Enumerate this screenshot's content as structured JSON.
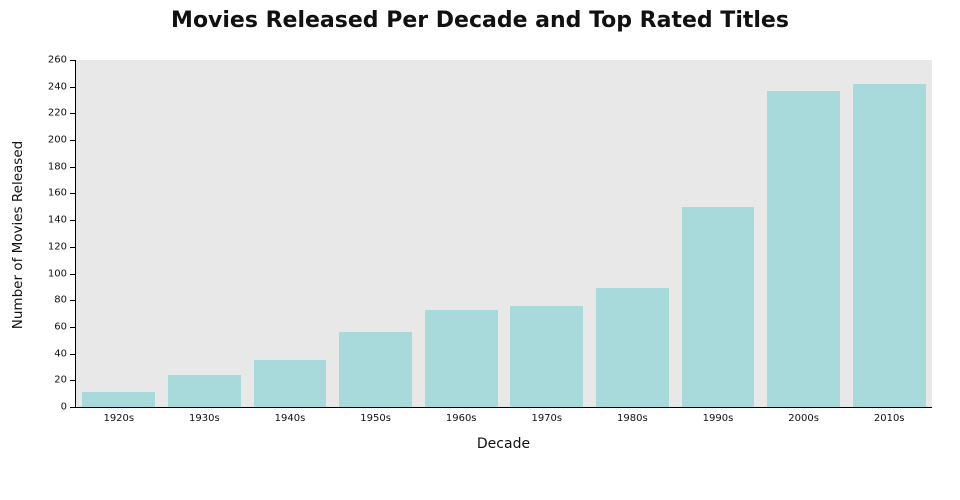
{
  "chart_data": {
    "type": "bar",
    "title": "Movies Released Per Decade and Top Rated Titles",
    "xlabel": "Decade",
    "ylabel": "Number of Movies Released",
    "categories": [
      "1920s",
      "1930s",
      "1940s",
      "1950s",
      "1960s",
      "1970s",
      "1980s",
      "1990s",
      "2000s",
      "2010s"
    ],
    "values": [
      11,
      24,
      35,
      56,
      73,
      76,
      89,
      150,
      237,
      242
    ],
    "ylim": [
      0,
      260
    ],
    "ytick_step": 20,
    "bar_color": "#a8dadc",
    "plot_bg": "#e8e8e8",
    "grid": false,
    "legend": "none"
  }
}
